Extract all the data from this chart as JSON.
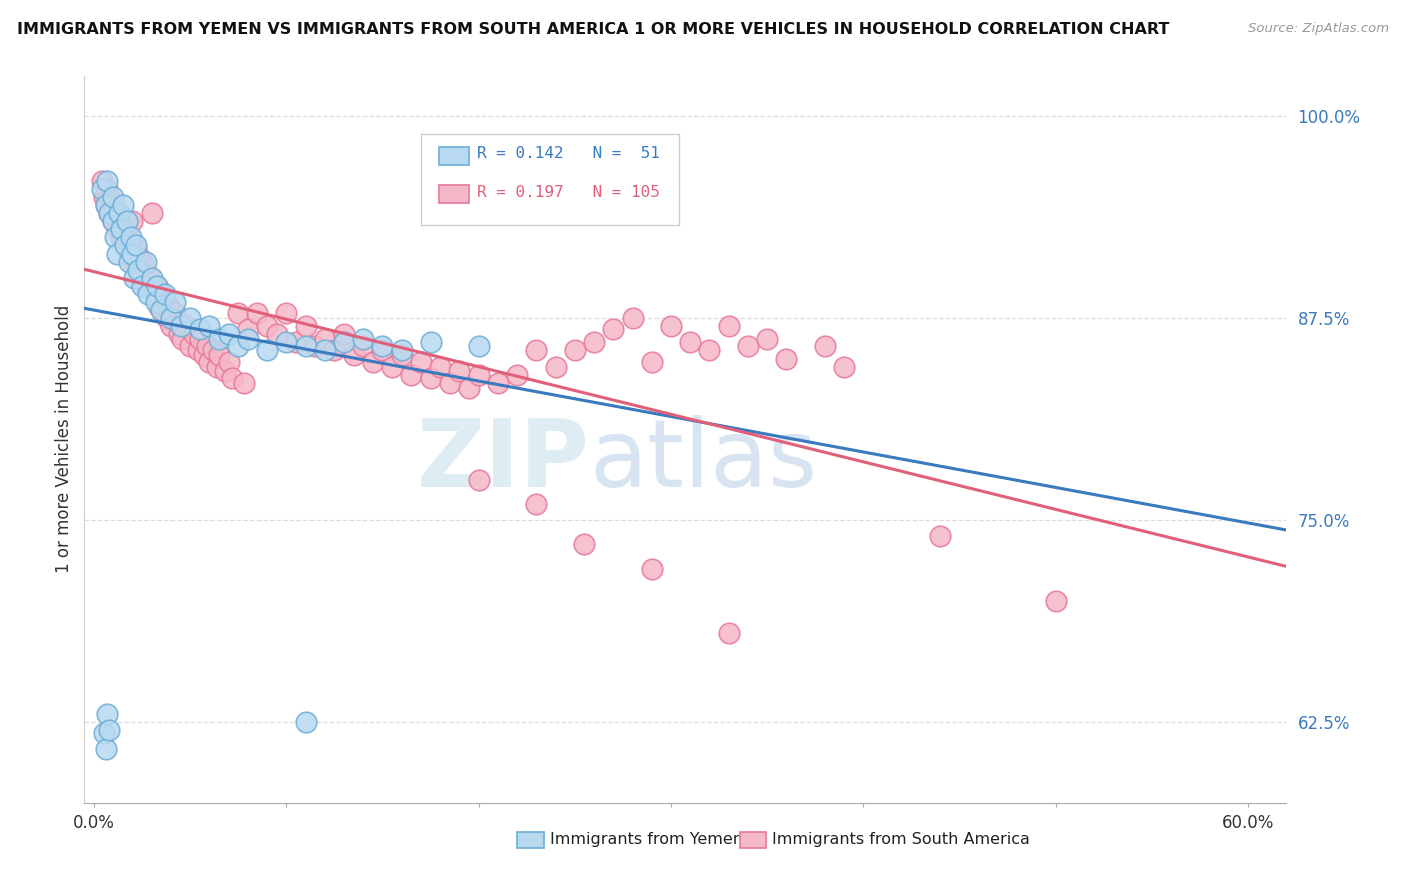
{
  "title": "IMMIGRANTS FROM YEMEN VS IMMIGRANTS FROM SOUTH AMERICA 1 OR MORE VEHICLES IN HOUSEHOLD CORRELATION CHART",
  "source": "Source: ZipAtlas.com",
  "ylabel": "1 or more Vehicles in Household",
  "xlim": [
    -0.005,
    0.62
  ],
  "ylim": [
    0.575,
    1.025
  ],
  "ytick_positions": [
    0.625,
    0.75,
    0.875,
    1.0
  ],
  "ytick_labels": [
    "62.5%",
    "75.0%",
    "87.5%",
    "100.0%"
  ],
  "xtick_positions": [
    0.0,
    0.1,
    0.2,
    0.3,
    0.4,
    0.5,
    0.6
  ],
  "xtick_labels": [
    "0.0%",
    "",
    "",
    "",
    "",
    "",
    "60.0%"
  ],
  "R_yemen": 0.142,
  "N_yemen": 51,
  "R_south_america": 0.197,
  "N_south_america": 105,
  "yemen_fill": "#b8d9f0",
  "yemen_edge": "#6baed6",
  "sa_fill": "#f5b8c8",
  "sa_edge": "#e8789a",
  "trend_yemen_color": "#3a7abf",
  "trend_sa_color": "#e0607a",
  "dashed_color": "#aaaaaa",
  "watermark_color": "#d8e8f5",
  "grid_color": "#dddddd"
}
